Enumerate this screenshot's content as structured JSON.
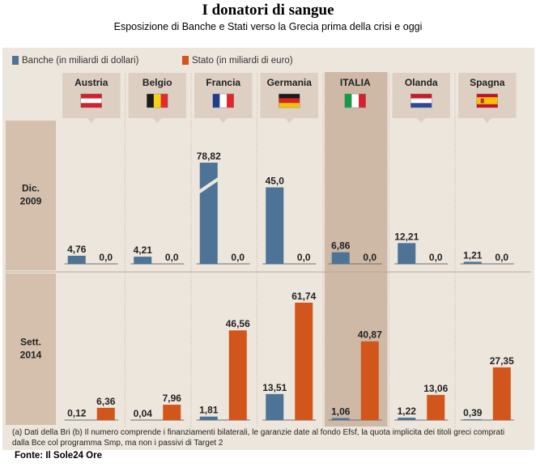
{
  "title": "I donatori di sangue",
  "subtitle": "Esposizione di Banche e Stati verso la Grecia prima della crisi e oggi",
  "legend": {
    "banks": "Banche (in miliardi di dollari)",
    "state": "Stato (in miliardi di euro)"
  },
  "colors": {
    "banks": "#4d7396",
    "state": "#d2561b",
    "panel": "#ede6dc",
    "row_label_bg": "#d4c0ad",
    "country_header_bg": "#ddd0c2",
    "highlight": "#cdb9a6"
  },
  "highlighted_country": "ITALIA",
  "chart_data": {
    "type": "bar",
    "title": "I donatori di sangue",
    "subtitle": "Esposizione di Banche e Stati verso la Grecia prima della crisi e oggi",
    "categories": [
      "Austria",
      "Belgio",
      "Francia",
      "Germania",
      "ITALIA",
      "Olanda",
      "Spagna"
    ],
    "flags": [
      "flag-austria",
      "flag-belgium",
      "flag-france",
      "flag-germany",
      "flag-italy",
      "flag-netherlands",
      "flag-spain"
    ],
    "periods": [
      {
        "label_line1": "Dic.",
        "label_line2": "2009",
        "series": [
          {
            "name": "Banche (in miliardi di dollari)",
            "values": [
              4.76,
              4.21,
              78.82,
              45.0,
              6.86,
              12.21,
              1.21
            ],
            "labels": [
              "4,76",
              "4,21",
              "78,82",
              "45,0",
              "6,86",
              "12,21",
              "1,21"
            ]
          },
          {
            "name": "Stato (in miliardi di euro)",
            "values": [
              0.0,
              0.0,
              0.0,
              0.0,
              0.0,
              0.0,
              0.0
            ],
            "labels": [
              "0,0",
              "0,0",
              "0,0",
              "0,0",
              "0,0",
              "0,0",
              "0,0"
            ]
          }
        ]
      },
      {
        "label_line1": "Sett.",
        "label_line2": "2014",
        "series": [
          {
            "name": "Banche (in miliardi di dollari)",
            "values": [
              0.12,
              0.04,
              1.81,
              13.51,
              1.06,
              1.22,
              0.39
            ],
            "labels": [
              "0,12",
              "0,04",
              "1,81",
              "13,51",
              "1,06",
              "1,22",
              "0,39"
            ]
          },
          {
            "name": "Stato (in miliardi di euro)",
            "values": [
              6.36,
              7.96,
              46.56,
              61.74,
              40.87,
              13.06,
              27.35
            ],
            "labels": [
              "6,36",
              "7,96",
              "46,56",
              "61,74",
              "40,87",
              "13,06",
              "27,35"
            ]
          }
        ]
      }
    ],
    "broken_bar": {
      "period": 0,
      "series": 0,
      "category": 2
    },
    "grid": false,
    "legend_position": "top-left"
  },
  "note": "(a) Dati della Bri (b) Il numero comprende i finanziamenti bilaterali, le garanzie date al fondo Efsf, la quota implicita dei titoli greci comprati dalla Bce col programma Smp, ma non i passivi di Target 2",
  "source": "Fonte: Il Sole24 Ore"
}
